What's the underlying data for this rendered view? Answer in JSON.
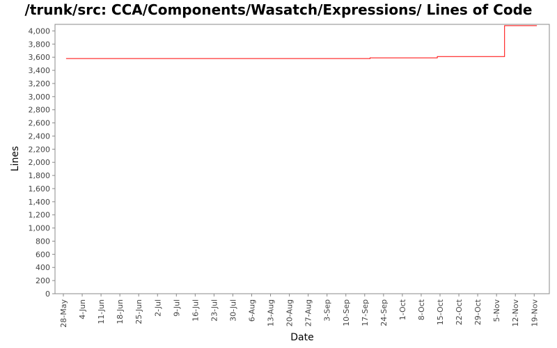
{
  "chart_data": {
    "type": "line",
    "title": "/trunk/src: CCA/Components/Wasatch/Expressions/ Lines of Code",
    "xlabel": "Date",
    "ylabel": "Lines",
    "ylim": [
      0,
      4100
    ],
    "yticks": [
      "0",
      "200",
      "400",
      "600",
      "800",
      "1,000",
      "1,200",
      "1,400",
      "1,600",
      "1,800",
      "2,000",
      "2,200",
      "2,400",
      "2,600",
      "2,800",
      "3,000",
      "3,200",
      "3,400",
      "3,600",
      "3,800",
      "4,000"
    ],
    "xticks": [
      "28-May",
      "4-Jun",
      "11-Jun",
      "18-Jun",
      "25-Jun",
      "2-Jul",
      "9-Jul",
      "16-Jul",
      "23-Jul",
      "30-Jul",
      "6-Aug",
      "13-Aug",
      "20-Aug",
      "27-Aug",
      "3-Sep",
      "10-Sep",
      "17-Sep",
      "24-Sep",
      "1-Oct",
      "8-Oct",
      "15-Oct",
      "22-Oct",
      "29-Oct",
      "5-Nov",
      "12-Nov",
      "19-Nov"
    ],
    "grid": false,
    "line_color": "#ff0000",
    "series": [
      {
        "x": [
          "29-May",
          "19-Sep",
          "19-Sep",
          "14-Oct",
          "14-Oct",
          "8-Nov",
          "8-Nov",
          "20-Nov"
        ],
        "y": [
          3580,
          3580,
          3590,
          3590,
          3610,
          3610,
          4080,
          4080
        ]
      }
    ]
  }
}
